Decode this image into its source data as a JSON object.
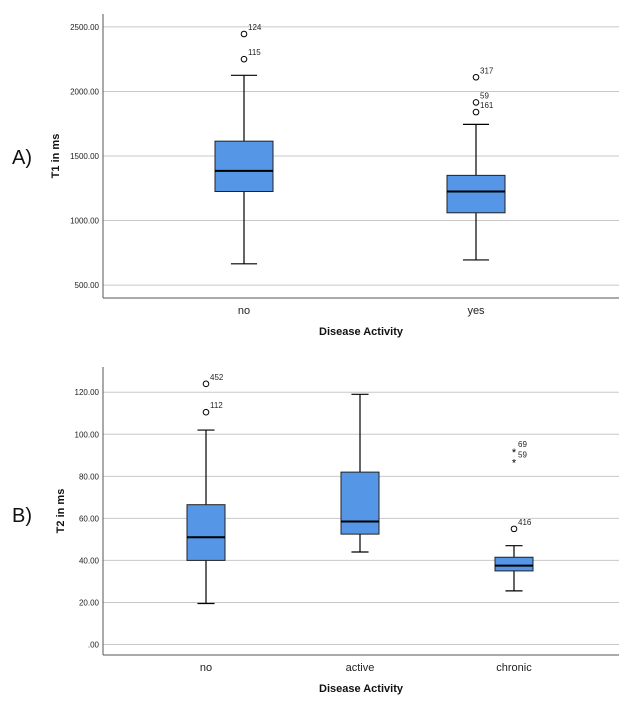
{
  "chart_data": [
    {
      "type": "boxplot",
      "panel_label": "A)",
      "xlabel": "Disease Activity",
      "ylabel": "T1 in ms",
      "ylim": [
        400,
        2600
      ],
      "yticks": [
        500,
        1000,
        1500,
        2000,
        2500
      ],
      "ytick_labels": [
        "500.00",
        "1000.00",
        "1500.00",
        "2000.00",
        "2500.00"
      ],
      "grid": true,
      "categories": [
        "no",
        "yes"
      ],
      "boxes": [
        {
          "category": "no",
          "min": 665,
          "q1": 1225,
          "median": 1385,
          "q3": 1615,
          "max": 2125,
          "outliers": [
            {
              "value": 2445,
              "label": "124",
              "marker": "circle"
            },
            {
              "value": 2250,
              "label": "115",
              "marker": "circle"
            }
          ]
        },
        {
          "category": "yes",
          "min": 695,
          "q1": 1060,
          "median": 1225,
          "q3": 1350,
          "max": 1745,
          "outliers": [
            {
              "value": 2110,
              "label": "317",
              "marker": "circle"
            },
            {
              "value": 1915,
              "label": "59",
              "marker": "circle"
            },
            {
              "value": 1840,
              "label": "161",
              "marker": "circle"
            }
          ]
        }
      ]
    },
    {
      "type": "boxplot",
      "panel_label": "B)",
      "xlabel": "Disease Activity",
      "ylabel": "T2 in ms",
      "ylim": [
        -5,
        132
      ],
      "yticks": [
        0,
        20,
        40,
        60,
        80,
        100,
        120
      ],
      "ytick_labels": [
        ".00",
        "20.00",
        "40.00",
        "60.00",
        "80.00",
        "100.00",
        "120.00"
      ],
      "grid": true,
      "categories": [
        "no",
        "active",
        "chronic"
      ],
      "boxes": [
        {
          "category": "no",
          "min": 19.5,
          "q1": 40,
          "median": 51,
          "q3": 66.5,
          "max": 102,
          "outliers": [
            {
              "value": 124,
              "label": "452",
              "marker": "circle"
            },
            {
              "value": 110.5,
              "label": "112",
              "marker": "circle"
            }
          ]
        },
        {
          "category": "active",
          "min": 44,
          "q1": 52.5,
          "median": 58.5,
          "q3": 82,
          "max": 119,
          "outliers": []
        },
        {
          "category": "chronic",
          "min": 25.5,
          "q1": 35,
          "median": 37.5,
          "q3": 41.5,
          "max": 47,
          "outliers": [
            {
              "value": 92,
              "label": "69",
              "marker": "star"
            },
            {
              "value": 87,
              "label": "59",
              "marker": "star"
            },
            {
              "value": 55,
              "label": "416",
              "marker": "circle"
            }
          ]
        }
      ]
    }
  ]
}
